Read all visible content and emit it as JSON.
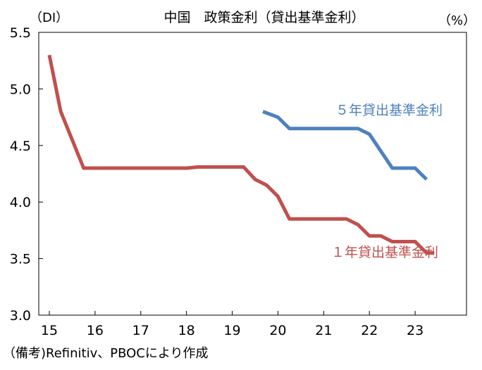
{
  "chart_data": {
    "type": "line",
    "title": "中国　政策金利（貸出基準金利）",
    "ylabel_left": "（DI）",
    "ylabel_right": "（%）",
    "xlabel": "",
    "source_note": "（備考)Refinitiv、PBOCにより作成",
    "x_tick_labels": [
      "15",
      "16",
      "17",
      "18",
      "19",
      "20",
      "21",
      "22",
      "23"
    ],
    "x_ticks": [
      2015,
      2016,
      2017,
      2018,
      2019,
      2020,
      2021,
      2022,
      2023
    ],
    "xlim": [
      2015,
      2024
    ],
    "y_tick_labels": [
      "3.0",
      "3.5",
      "4.0",
      "4.5",
      "5.0",
      "5.5"
    ],
    "y_ticks": [
      3.0,
      3.5,
      4.0,
      4.5,
      5.0,
      5.5
    ],
    "ylim": [
      3.0,
      5.5
    ],
    "grid": false,
    "series": [
      {
        "name": "１年貸出基準金利",
        "color": "#c0504d",
        "points": [
          [
            2015.0,
            5.3
          ],
          [
            2015.25,
            4.8
          ],
          [
            2015.75,
            4.3
          ],
          [
            2018.0,
            4.3
          ],
          [
            2018.25,
            4.31
          ],
          [
            2019.25,
            4.31
          ],
          [
            2019.5,
            4.2
          ],
          [
            2019.75,
            4.15
          ],
          [
            2020.0,
            4.05
          ],
          [
            2020.25,
            3.85
          ],
          [
            2021.5,
            3.85
          ],
          [
            2021.75,
            3.8
          ],
          [
            2022.0,
            3.7
          ],
          [
            2022.25,
            3.7
          ],
          [
            2022.5,
            3.65
          ],
          [
            2023.0,
            3.65
          ],
          [
            2023.25,
            3.55
          ],
          [
            2023.42,
            3.55
          ]
        ]
      },
      {
        "name": "５年貸出基準金利",
        "color": "#4f81bd",
        "points": [
          [
            2019.67,
            4.8
          ],
          [
            2020.0,
            4.75
          ],
          [
            2020.25,
            4.65
          ],
          [
            2021.75,
            4.65
          ],
          [
            2022.0,
            4.6
          ],
          [
            2022.5,
            4.3
          ],
          [
            2023.0,
            4.3
          ],
          [
            2023.25,
            4.2
          ]
        ]
      }
    ]
  }
}
